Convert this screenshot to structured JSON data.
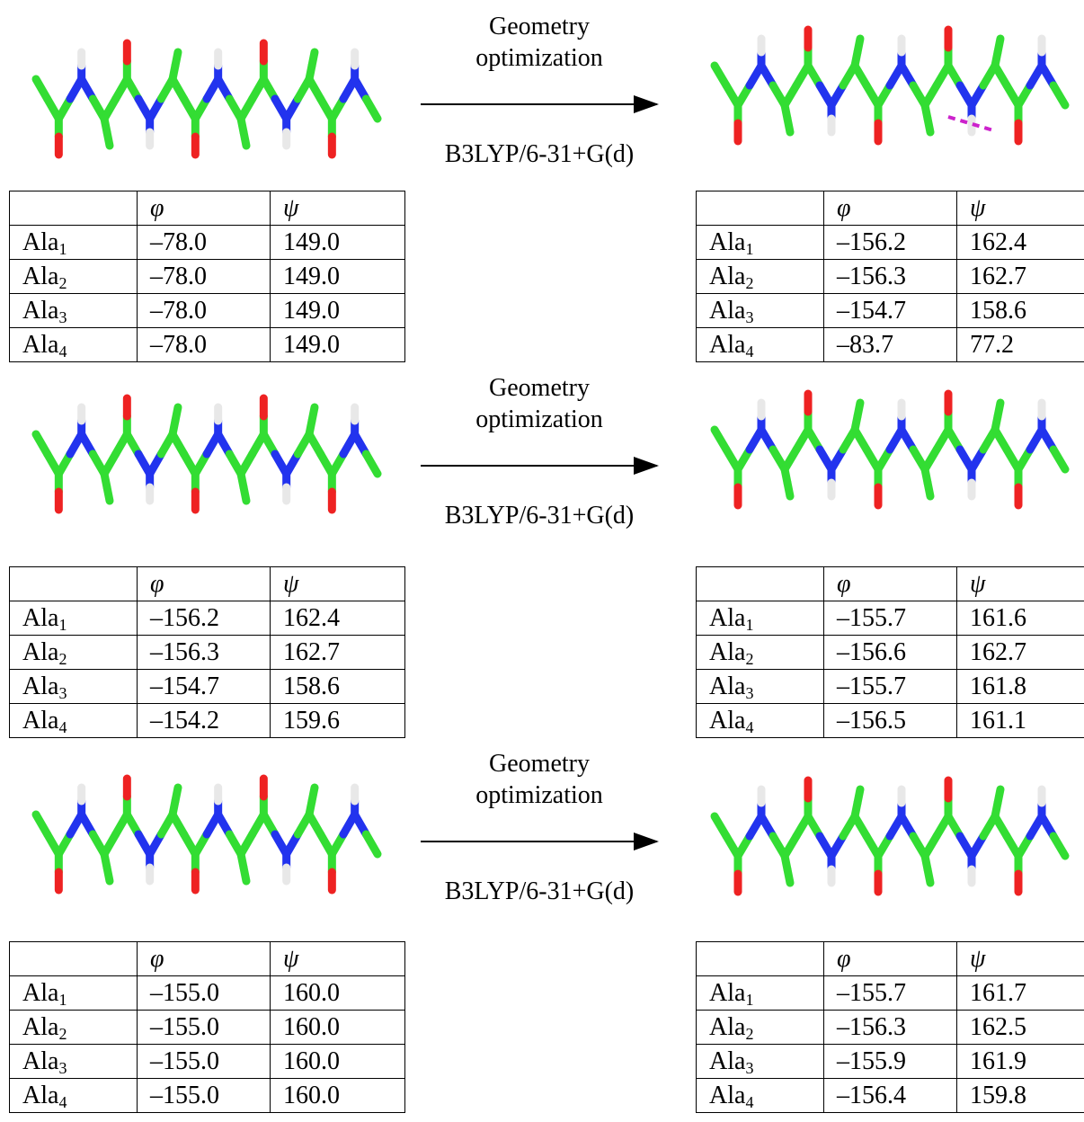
{
  "rows": [
    {
      "arrow": {
        "top": "Geometry optimization",
        "bottom": "B3LYP/6-31+G(d)"
      },
      "before": {
        "header": [
          "φ",
          "ψ"
        ],
        "rows": [
          {
            "residue": "Ala",
            "index": "1",
            "phi": "–78.0",
            "psi": "149.0"
          },
          {
            "residue": "Ala",
            "index": "2",
            "phi": "–78.0",
            "psi": "149.0"
          },
          {
            "residue": "Ala",
            "index": "3",
            "phi": "–78.0",
            "psi": "149.0"
          },
          {
            "residue": "Ala",
            "index": "4",
            "phi": "–78.0",
            "psi": "149.0"
          }
        ]
      },
      "after": {
        "header": [
          "φ",
          "ψ"
        ],
        "rows": [
          {
            "residue": "Ala",
            "index": "1",
            "phi": "–156.2",
            "psi": "162.4"
          },
          {
            "residue": "Ala",
            "index": "2",
            "phi": "–156.3",
            "psi": "162.7"
          },
          {
            "residue": "Ala",
            "index": "3",
            "phi": "–154.7",
            "psi": "158.6"
          },
          {
            "residue": "Ala",
            "index": "4",
            "phi": "–83.7",
            "psi": "77.2"
          }
        ]
      }
    },
    {
      "arrow": {
        "top": "Geometry optimization",
        "bottom": "B3LYP/6-31+G(d)"
      },
      "before": {
        "header": [
          "φ",
          "ψ"
        ],
        "rows": [
          {
            "residue": "Ala",
            "index": "1",
            "phi": "–156.2",
            "psi": "162.4"
          },
          {
            "residue": "Ala",
            "index": "2",
            "phi": "–156.3",
            "psi": "162.7"
          },
          {
            "residue": "Ala",
            "index": "3",
            "phi": "–154.7",
            "psi": "158.6"
          },
          {
            "residue": "Ala",
            "index": "4",
            "phi": "–154.2",
            "psi": "159.6"
          }
        ]
      },
      "after": {
        "header": [
          "φ",
          "ψ"
        ],
        "rows": [
          {
            "residue": "Ala",
            "index": "1",
            "phi": "–155.7",
            "psi": "161.6"
          },
          {
            "residue": "Ala",
            "index": "2",
            "phi": "–156.6",
            "psi": "162.7"
          },
          {
            "residue": "Ala",
            "index": "3",
            "phi": "–155.7",
            "psi": "161.8"
          },
          {
            "residue": "Ala",
            "index": "4",
            "phi": "–156.5",
            "psi": "161.1"
          }
        ]
      }
    },
    {
      "arrow": {
        "top": "Geometry optimization",
        "bottom": "B3LYP/6-31+G(d)"
      },
      "before": {
        "header": [
          "φ",
          "ψ"
        ],
        "rows": [
          {
            "residue": "Ala",
            "index": "1",
            "phi": "–155.0",
            "psi": "160.0"
          },
          {
            "residue": "Ala",
            "index": "2",
            "phi": "–155.0",
            "psi": "160.0"
          },
          {
            "residue": "Ala",
            "index": "3",
            "phi": "–155.0",
            "psi": "160.0"
          },
          {
            "residue": "Ala",
            "index": "4",
            "phi": "–155.0",
            "psi": "160.0"
          }
        ]
      },
      "after": {
        "header": [
          "φ",
          "ψ"
        ],
        "rows": [
          {
            "residue": "Ala",
            "index": "1",
            "phi": "–155.7",
            "psi": "161.7"
          },
          {
            "residue": "Ala",
            "index": "2",
            "phi": "–156.3",
            "psi": "162.5"
          },
          {
            "residue": "Ala",
            "index": "3",
            "phi": "–155.9",
            "psi": "161.9"
          },
          {
            "residue": "Ala",
            "index": "4",
            "phi": "–156.4",
            "psi": "159.8"
          }
        ]
      }
    }
  ]
}
